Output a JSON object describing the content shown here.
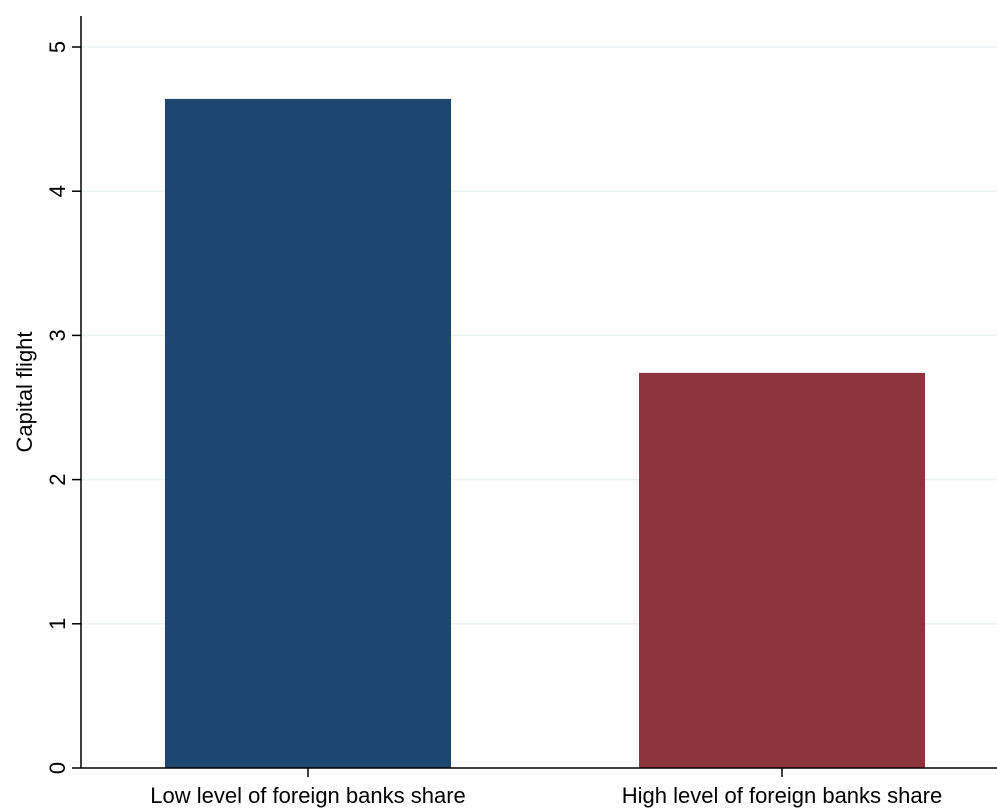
{
  "chart_data": {
    "type": "bar",
    "title": "",
    "xlabel": "",
    "ylabel": "Capital flight",
    "categories": [
      "Low level of foreign banks share",
      "High level of foreign banks share"
    ],
    "values": [
      4.64,
      2.74
    ],
    "colors": [
      "#1d476e",
      "#8d353d"
    ],
    "ylim": [
      0,
      5
    ],
    "yticks": [
      "0",
      "1",
      "2",
      "3",
      "4",
      "5"
    ],
    "grid": true,
    "legend": "none"
  }
}
